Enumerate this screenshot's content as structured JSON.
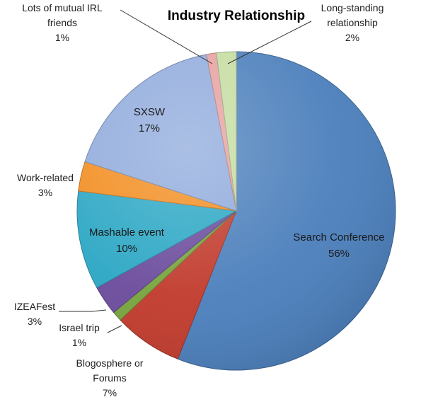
{
  "chart_data": {
    "type": "pie",
    "title": "Industry Relationship",
    "start_angle_deg": 0,
    "direction": "clockwise",
    "slices": [
      {
        "label": "Search Conference",
        "label_lines": [
          "Search Conference"
        ],
        "value": 56,
        "pct_label": "56%",
        "color": "#4a7ebb",
        "label_mode": "inside"
      },
      {
        "label": "Blogosphere or Forums",
        "label_lines": [
          "Blogosphere or",
          "Forums"
        ],
        "value": 7,
        "pct_label": "7%",
        "color": "#c0392b",
        "label_mode": "outside"
      },
      {
        "label": "Israel trip",
        "label_lines": [
          "Israel trip"
        ],
        "value": 1,
        "pct_label": "1%",
        "color": "#77a33a",
        "label_mode": "outside-leader"
      },
      {
        "label": "IZEAFest",
        "label_lines": [
          "IZEAFest"
        ],
        "value": 3,
        "pct_label": "3%",
        "color": "#6a4a9c",
        "label_mode": "outside-leader"
      },
      {
        "label": "Mashable event",
        "label_lines": [
          "Mashable event"
        ],
        "value": 10,
        "pct_label": "10%",
        "color": "#2aa6c4",
        "label_mode": "inside"
      },
      {
        "label": "Work-related",
        "label_lines": [
          "Work-related"
        ],
        "value": 3,
        "pct_label": "3%",
        "color": "#f28c1e",
        "label_mode": "outside"
      },
      {
        "label": "SXSW",
        "label_lines": [
          "SXSW"
        ],
        "value": 17,
        "pct_label": "17%",
        "color": "#8faadc",
        "label_mode": "inside"
      },
      {
        "label": "Lots of mutual IRL friends",
        "label_lines": [
          "Lots of mutual IRL",
          "friends"
        ],
        "value": 1,
        "pct_label": "1%",
        "color": "#e6a0a0",
        "label_mode": "outside-leader"
      },
      {
        "label": "Long-standing relationship",
        "label_lines": [
          "Long-standing",
          "relationship"
        ],
        "value": 2,
        "pct_label": "2%",
        "color": "#c4dca0",
        "label_mode": "outside-leader"
      }
    ],
    "legend": "none"
  }
}
